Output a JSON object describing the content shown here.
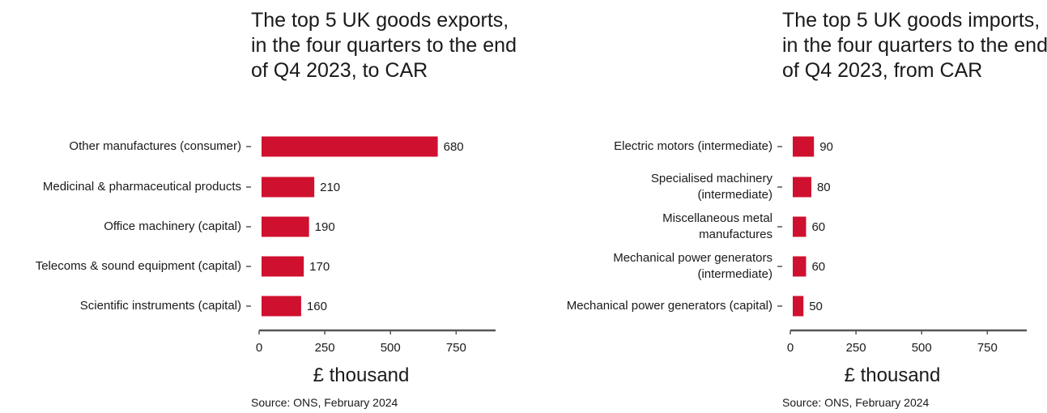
{
  "chart_data": [
    {
      "type": "bar",
      "orientation": "horizontal",
      "title": "The top 5 UK goods exports, in the four quarters to the end of Q4 2023, to CAR",
      "categories": [
        "Other manufactures (consumer)",
        "Medicinal & pharmaceutical products",
        "Office machinery (capital)",
        "Telecoms & sound equipment (capital)",
        "Scientific instruments (capital)"
      ],
      "values": [
        680,
        210,
        190,
        170,
        160
      ],
      "value_labels": [
        "680",
        "210",
        "190",
        "170",
        "160"
      ],
      "xlabel": "£ thousand",
      "xlim": [
        0,
        900
      ],
      "xticks": [
        0,
        250,
        500,
        750
      ],
      "xtick_labels": [
        "0",
        "250",
        "500",
        "750"
      ],
      "bar_color": "#d0102f",
      "grid": false,
      "source": "Source: ONS, February 2024"
    },
    {
      "type": "bar",
      "orientation": "horizontal",
      "title": "The top 5 UK goods imports, in the four quarters to the end of Q4 2023, from CAR",
      "categories": [
        "Electric motors (intermediate)",
        "Specialised machinery (intermediate)",
        "Miscellaneous metal manufactures",
        "Mechanical power generators (intermediate)",
        "Mechanical power generators (capital)"
      ],
      "values": [
        90,
        80,
        60,
        60,
        50
      ],
      "value_labels": [
        "90",
        "80",
        "60",
        "60",
        "50"
      ],
      "xlabel": "£ thousand",
      "xlim": [
        0,
        900
      ],
      "xticks": [
        0,
        250,
        500,
        750
      ],
      "xtick_labels": [
        "0",
        "250",
        "500",
        "750"
      ],
      "bar_color": "#d0102f",
      "grid": false,
      "source": "Source: ONS, February 2024"
    }
  ]
}
